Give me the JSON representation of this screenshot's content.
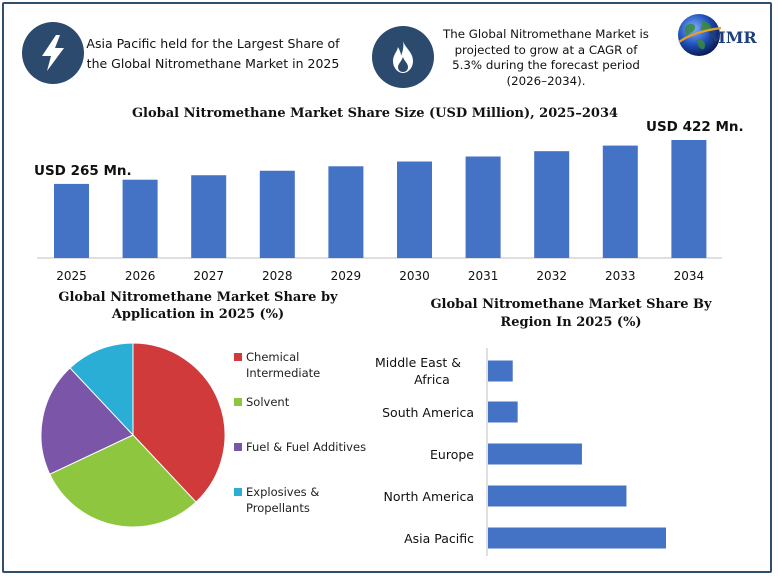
{
  "header": {
    "left_info": "Asia Pacific held for the Largest Share of the Global Nitromethane Market in 2025",
    "right_info": "The Global Nitromethane Market is projected to grow at a CAGR of 5.3% during the forecast period (2026–2034).",
    "logo_text": "MMR",
    "left_icon": "lightning-bolt-icon",
    "right_icon": "flame-icon"
  },
  "colors": {
    "bar": "#4472c4",
    "icon_circle": "#2c4a6e",
    "frame": "#2f4f6f",
    "logo_text": "#1f3f7a"
  },
  "chart_data": [
    {
      "type": "bar",
      "title": "Global Nitromethane Market Share Size (USD Million), 2025–2034",
      "categories": [
        "2025",
        "2026",
        "2027",
        "2028",
        "2029",
        "2030",
        "2031",
        "2032",
        "2033",
        "2034"
      ],
      "values": [
        265,
        280,
        296,
        312,
        328,
        345,
        363,
        382,
        402,
        422
      ],
      "annotations": {
        "first": "USD 265 Mn.",
        "last": "USD 422 Mn."
      },
      "ylim": [
        0,
        450
      ],
      "grid": false
    },
    {
      "type": "pie",
      "title": "Global Nitromethane Market Share by Application in 2025 (%)",
      "labels": [
        "Chemical Intermediate",
        "Solvent",
        "Fuel & Fuel Additives",
        "Explosives & Propellants"
      ],
      "values": [
        38,
        30,
        20,
        12
      ],
      "colors": [
        "#d03a3a",
        "#8ec63f",
        "#7b55a8",
        "#2aaed6"
      ],
      "legend": "right"
    },
    {
      "type": "bar",
      "orientation": "horizontal",
      "title": "Global Nitromethane Market Share By Region In 2025 (%)",
      "categories": [
        "Middle East & Africa",
        "South America",
        "Europe",
        "North America",
        "Asia Pacific"
      ],
      "values": [
        5,
        6,
        19,
        28,
        36
      ],
      "xlim": [
        0,
        40
      ],
      "grid": false
    }
  ]
}
